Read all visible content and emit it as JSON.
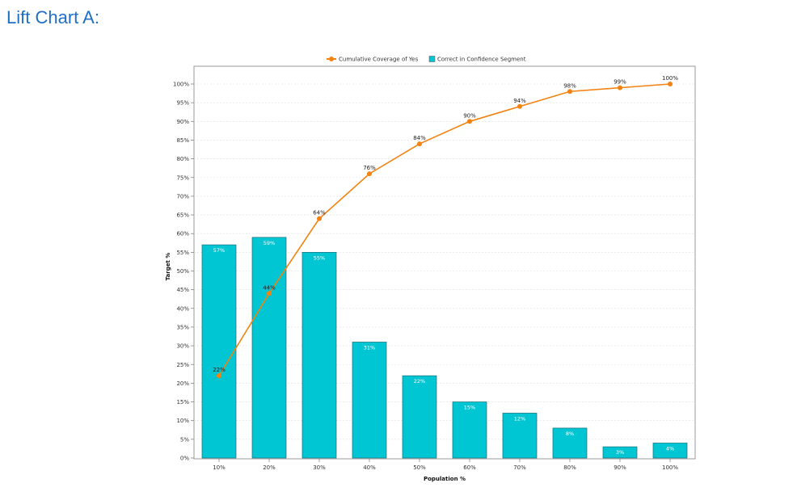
{
  "page": {
    "title": "Lift Chart A:"
  },
  "chart_data": {
    "type": "bar+line",
    "categories": [
      "10%",
      "20%",
      "30%",
      "40%",
      "50%",
      "60%",
      "70%",
      "80%",
      "90%",
      "100%"
    ],
    "series": [
      {
        "name": "Correct in Confidence Segment",
        "kind": "bar",
        "color": "#00c5d2",
        "values": [
          57,
          59,
          55,
          31,
          22,
          15,
          12,
          8,
          3,
          4
        ],
        "labels": [
          "57%",
          "59%",
          "55%",
          "31%",
          "22%",
          "15%",
          "12%",
          "8%",
          "3%",
          "4%"
        ]
      },
      {
        "name": "Cumulative Coverage of Yes",
        "kind": "line",
        "color": "#f28310",
        "values": [
          22,
          44,
          64,
          76,
          84,
          90,
          94,
          98,
          99,
          100
        ],
        "labels": [
          "22%",
          "44%",
          "64%",
          "76%",
          "84%",
          "90%",
          "94%",
          "98%",
          "99%",
          "100%"
        ]
      }
    ],
    "xlabel": "Population %",
    "ylabel": "Target %",
    "ylim": [
      0,
      100
    ],
    "yticks": [
      "0%",
      "5%",
      "10%",
      "15%",
      "20%",
      "25%",
      "30%",
      "35%",
      "40%",
      "45%",
      "50%",
      "55%",
      "60%",
      "65%",
      "70%",
      "75%",
      "80%",
      "85%",
      "90%",
      "95%",
      "100%"
    ],
    "legend": {
      "position": "top",
      "items": [
        "Cumulative Coverage of Yes",
        "Correct in Confidence Segment"
      ]
    },
    "grid": true
  }
}
